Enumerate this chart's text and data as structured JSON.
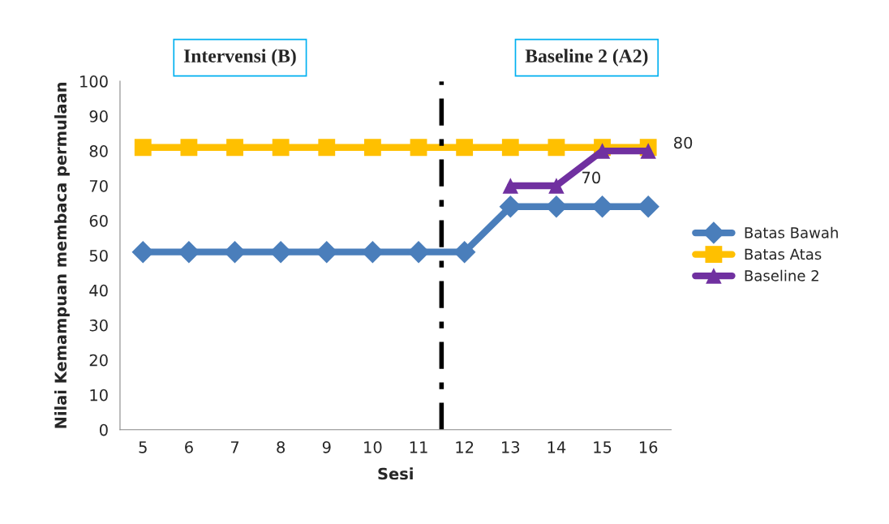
{
  "chart_data": {
    "type": "line",
    "x": [
      5,
      6,
      7,
      8,
      9,
      10,
      11,
      12,
      13,
      14,
      15,
      16
    ],
    "xlim": [
      4.5,
      16.5
    ],
    "xticks": [
      5,
      6,
      7,
      8,
      9,
      10,
      11,
      12,
      13,
      14,
      15,
      16
    ],
    "ylim": [
      0,
      100
    ],
    "yticks": [
      0,
      10,
      20,
      30,
      40,
      50,
      60,
      70,
      80,
      90,
      100
    ],
    "xlabel": "Sesi",
    "ylabel": "Nilai Kemampuan membaca permulaan",
    "series": [
      {
        "name": "Batas Bawah",
        "color": "#4a7ebb",
        "marker": "diamond",
        "values": [
          51,
          51,
          51,
          51,
          51,
          51,
          51,
          51,
          64,
          64,
          64,
          64
        ]
      },
      {
        "name": "Batas Atas",
        "color": "#ffc000",
        "marker": "square",
        "values": [
          81,
          81,
          81,
          81,
          81,
          81,
          81,
          81,
          81,
          81,
          81,
          81
        ]
      },
      {
        "name": "Baseline 2",
        "color": "#7030a0",
        "marker": "triangle",
        "values": [
          null,
          null,
          null,
          null,
          null,
          null,
          null,
          null,
          70,
          70,
          80,
          80
        ]
      }
    ],
    "ref_lines": [
      {
        "axis": "x",
        "value": 11.5,
        "color": "#000000",
        "line_style": "dashed"
      }
    ],
    "annotations": [
      "Intervensi (B)",
      "Baseline 2 (A2)",
      {
        "text": "70",
        "x": 14,
        "y": 70
      },
      {
        "text": "80",
        "x": 16,
        "y": 80
      }
    ],
    "legend": "right",
    "grid": false
  }
}
